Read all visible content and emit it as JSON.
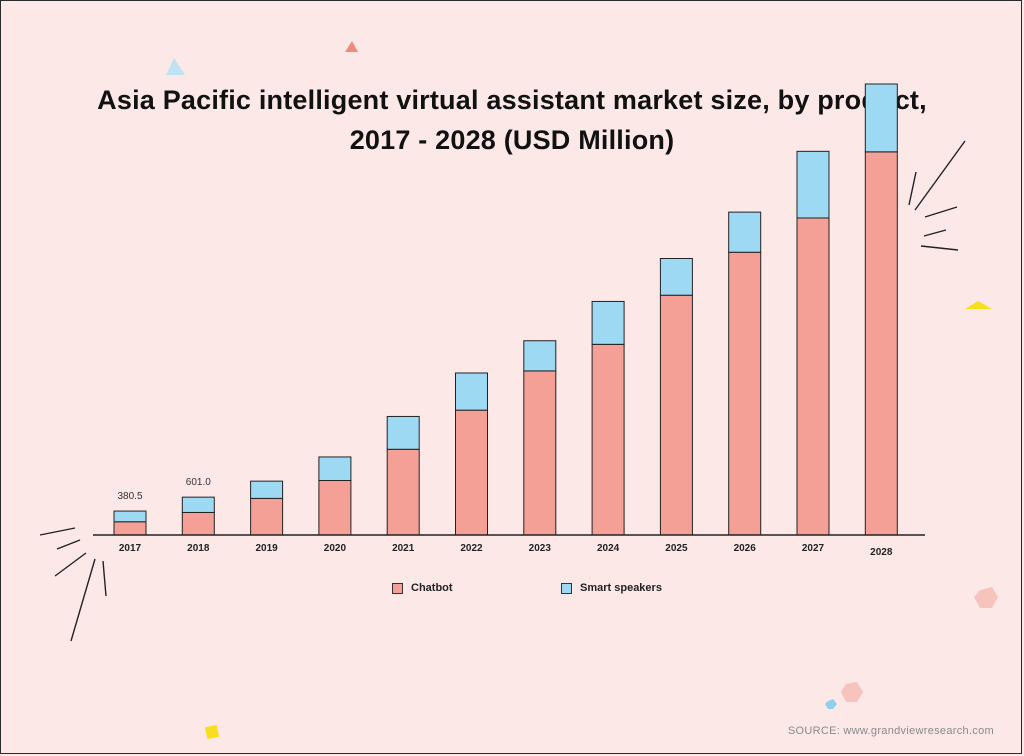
{
  "title_line1": "Asia Pacific intelligent virtual assistant market size, by product,",
  "title_line2": "2017 - 2028 (USD Million)",
  "source": "SOURCE: www.grandviewresearch.com",
  "colors": {
    "chatbot": "#f4a096",
    "smart_speakers": "#9ed9f4",
    "background": "#fde8e8"
  },
  "chart_data": {
    "type": "bar",
    "stacked": true,
    "categories": [
      "2017",
      "2018",
      "2019",
      "2020",
      "2021",
      "2022",
      "2023",
      "2024",
      "2025",
      "2026",
      "2027",
      "2028"
    ],
    "series": [
      {
        "name": "Chatbot",
        "values": [
          210,
          358,
          581,
          865,
          1361,
          1982,
          2605,
          3027,
          3807,
          4489,
          5033,
          6083
        ]
      },
      {
        "name": "Smart speakers",
        "values": [
          170,
          243,
          274,
          374,
          521,
          590,
          479,
          681,
          583,
          637,
          1058,
          1077
        ]
      }
    ],
    "data_labels": [
      {
        "category": "2017",
        "text": "380.5"
      },
      {
        "category": "2018",
        "text": "601.0"
      }
    ],
    "legend": {
      "position": "bottom",
      "entries": [
        "Chatbot",
        "Smart speakers"
      ]
    },
    "grid": false,
    "ylim": [
      0,
      7160
    ],
    "xlabel": "",
    "ylabel": ""
  }
}
